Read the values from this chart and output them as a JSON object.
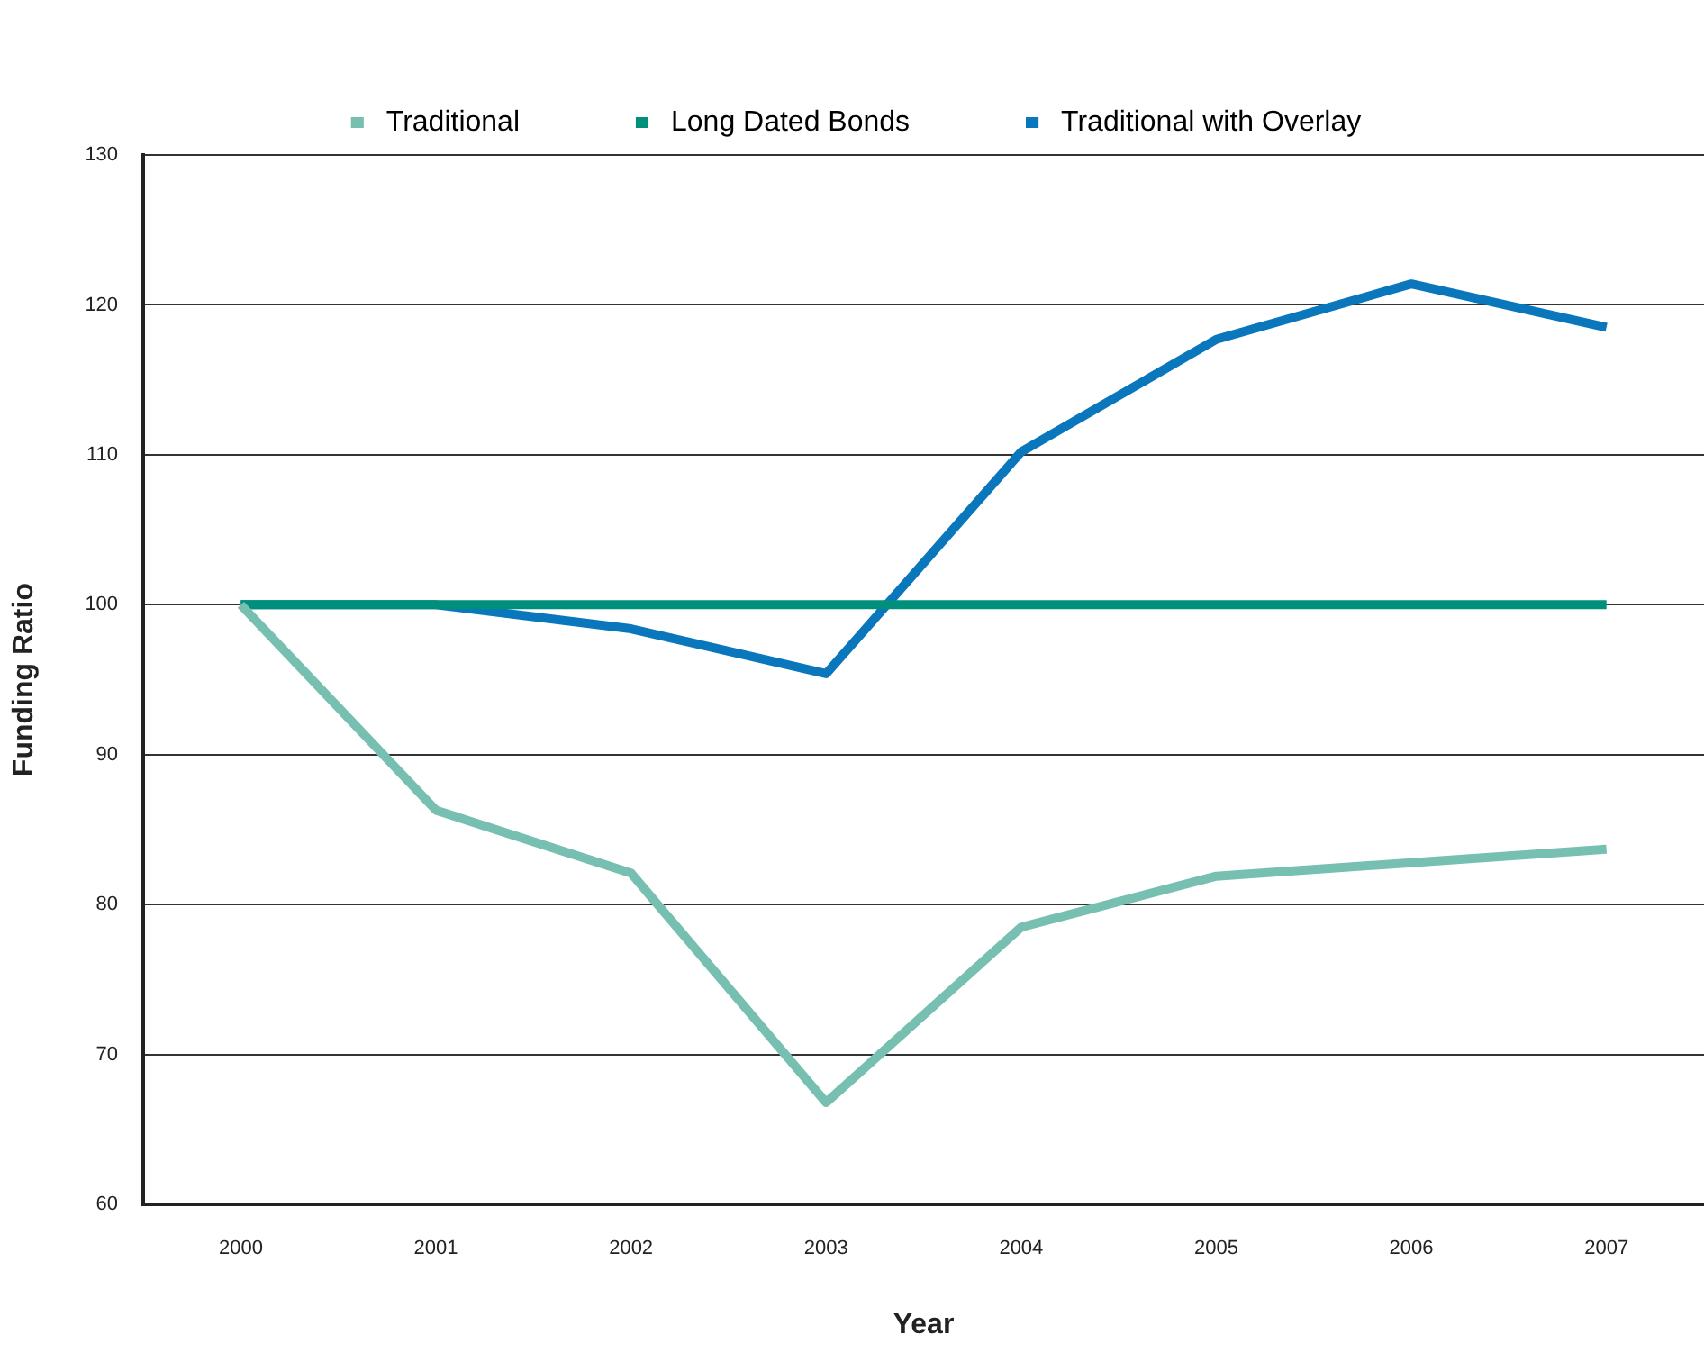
{
  "chart_data": {
    "type": "line",
    "xlabel": "Year",
    "ylabel": "Funding Ratio",
    "categories": [
      "2000",
      "2001",
      "2002",
      "2003",
      "2004",
      "2005",
      "2006",
      "2007"
    ],
    "series": [
      {
        "name": "Traditional",
        "color": "#76bfb1",
        "values": [
          100,
          86.3,
          82.1,
          66.8,
          78.5,
          81.9,
          82.8,
          83.7
        ]
      },
      {
        "name": "Long Dated Bonds",
        "color": "#008f7a",
        "values": [
          100,
          100,
          100,
          100,
          100,
          100,
          100,
          100
        ]
      },
      {
        "name": "Traditional with Overlay",
        "color": "#0a77bd",
        "values": [
          100,
          100,
          98.4,
          95.4,
          110.2,
          117.7,
          121.4,
          118.5
        ]
      }
    ],
    "ylim": [
      60,
      130
    ],
    "yticks": [
      60,
      70,
      80,
      90,
      100,
      110,
      120,
      130
    ],
    "grid": "y",
    "legend": "top",
    "marker": "none",
    "line_style": "solid"
  }
}
